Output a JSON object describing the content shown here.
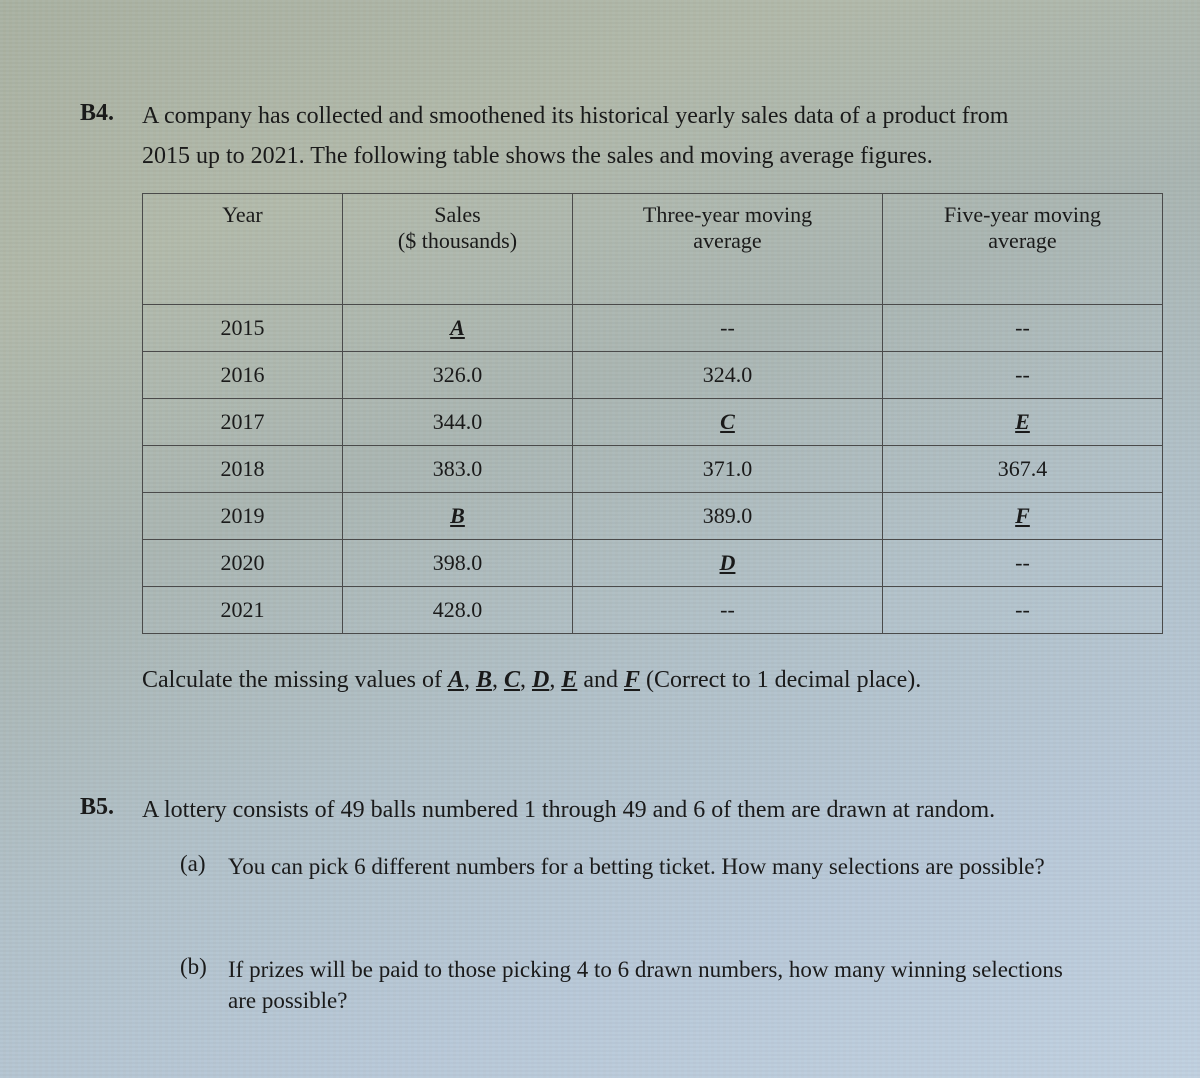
{
  "b4": {
    "number": "B4.",
    "line1": "A company has collected and smoothened its historical yearly sales data of a product from",
    "line2": "2015 up to 2021.    The following table shows the sales and moving average figures.",
    "instruction_pre": "Calculate the missing values of ",
    "A": "A",
    "B": "B",
    "C": "C",
    "D": "D",
    "E": "E",
    "F": "F",
    "sep": ", ",
    "and": " and ",
    "instruction_post": " (Correct to 1 decimal place)."
  },
  "table": {
    "headers": {
      "year": "Year",
      "sales_l1": "Sales",
      "sales_l2": "($ thousands)",
      "ma3_l1": "Three-year moving",
      "ma3_l2": "average",
      "ma5_l1": "Five-year moving",
      "ma5_l2": "average"
    },
    "col_widths": [
      "200px",
      "230px",
      "310px",
      "280px"
    ],
    "rows": [
      {
        "year": "2015",
        "sales": "A",
        "sales_u": true,
        "ma3": "--",
        "ma5": "--"
      },
      {
        "year": "2016",
        "sales": "326.0",
        "ma3": "324.0",
        "ma5": "--"
      },
      {
        "year": "2017",
        "sales": "344.0",
        "ma3": "C",
        "ma3_u": true,
        "ma5": "E",
        "ma5_u": true
      },
      {
        "year": "2018",
        "sales": "383.0",
        "ma3": "371.0",
        "ma5": "367.4"
      },
      {
        "year": "2019",
        "sales": "B",
        "sales_u": true,
        "ma3": "389.0",
        "ma5": "F",
        "ma5_u": true
      },
      {
        "year": "2020",
        "sales": "398.0",
        "ma3": "D",
        "ma3_u": true,
        "ma5": "--"
      },
      {
        "year": "2021",
        "sales": "428.0",
        "ma3": "--",
        "ma5": "--"
      }
    ]
  },
  "b5": {
    "number": "B5.",
    "intro": "A lottery consists of 49 balls numbered 1 through 49 and 6 of them are drawn at random.",
    "a_label": "(a)",
    "a_text": "You can pick 6 different numbers for a betting ticket.    How many selections are possible?",
    "b_label": "(b)",
    "b_line1": "If prizes will be paid to those picking 4 to 6 drawn numbers, how many winning selections",
    "b_line2": "are possible?"
  },
  "colors": {
    "text": "#1a1a1a",
    "border": "#4a4a4a"
  }
}
